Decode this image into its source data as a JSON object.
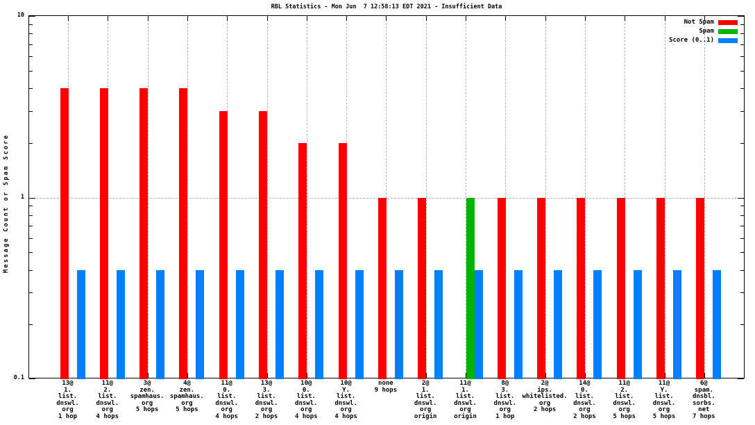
{
  "chart_data": {
    "type": "bar",
    "title": "RBL Statistics - Mon Jun  7 12:58:13 EDT 2021 - Insufficient Data",
    "ylabel": "Message Count or Spam Score",
    "yscale": "log",
    "ylim": [
      0.1,
      10
    ],
    "yticks": [
      {
        "label": "0.1",
        "value": 0.1
      },
      {
        "label": "1",
        "value": 1
      },
      {
        "label": "10",
        "value": 10
      }
    ],
    "grid": {
      "horizontal_at": [
        1
      ],
      "vertical": "every-category"
    },
    "legend_position": "top-right",
    "legend": [
      {
        "label": "Not Spam",
        "series": "not_spam",
        "color": "#ff0000"
      },
      {
        "label": "Spam",
        "series": "spam",
        "color": "#00b400"
      },
      {
        "label": "Score (0..1)",
        "series": "score",
        "color": "#0080ff"
      }
    ],
    "categories": [
      {
        "label_lines": [
          "13@",
          "1.",
          "list.",
          "dnswl.",
          "org",
          "1 hop"
        ],
        "not_spam": 4,
        "spam": 0,
        "score": 0.4
      },
      {
        "label_lines": [
          "11@",
          "2.",
          "list.",
          "dnswl.",
          "org",
          "4 hops"
        ],
        "not_spam": 4,
        "spam": 0,
        "score": 0.4
      },
      {
        "label_lines": [
          "3@",
          "zen.",
          "spamhaus.",
          "org",
          "5 hops"
        ],
        "not_spam": 4,
        "spam": 0,
        "score": 0.4
      },
      {
        "label_lines": [
          "4@",
          "zen.",
          "spamhaus.",
          "org",
          "5 hops"
        ],
        "not_spam": 4,
        "spam": 0,
        "score": 0.4
      },
      {
        "label_lines": [
          "11@",
          "0.",
          "list.",
          "dnswl.",
          "org",
          "4 hops"
        ],
        "not_spam": 3,
        "spam": 0,
        "score": 0.4
      },
      {
        "label_lines": [
          "13@",
          "3.",
          "list.",
          "dnswl.",
          "org",
          "2 hops"
        ],
        "not_spam": 3,
        "spam": 0,
        "score": 0.4
      },
      {
        "label_lines": [
          "10@",
          "0.",
          "list.",
          "dnswl.",
          "org",
          "4 hops"
        ],
        "not_spam": 2,
        "spam": 0,
        "score": 0.4
      },
      {
        "label_lines": [
          "10@",
          "Y.",
          "list.",
          "dnswl.",
          "org",
          "4 hops"
        ],
        "not_spam": 2,
        "spam": 0,
        "score": 0.4
      },
      {
        "label_lines": [
          "none",
          "9 hops"
        ],
        "not_spam": 1,
        "spam": 0,
        "score": 0.4
      },
      {
        "label_lines": [
          "2@",
          "1.",
          "list.",
          "dnswl.",
          "org",
          "origin"
        ],
        "not_spam": 1,
        "spam": 0,
        "score": 0.4
      },
      {
        "label_lines": [
          "11@",
          "1.",
          "list.",
          "dnswl.",
          "org",
          "origin"
        ],
        "not_spam": 0,
        "spam": 1,
        "score": 0.4
      },
      {
        "label_lines": [
          "8@",
          "3.",
          "list.",
          "dnswl.",
          "org",
          "1 hop"
        ],
        "not_spam": 1,
        "spam": 0,
        "score": 0.4
      },
      {
        "label_lines": [
          "2@",
          "ips.",
          "whitelisted.",
          "org",
          "2 hops"
        ],
        "not_spam": 1,
        "spam": 0,
        "score": 0.4
      },
      {
        "label_lines": [
          "14@",
          "0.",
          "list.",
          "dnswl.",
          "org",
          "2 hops"
        ],
        "not_spam": 1,
        "spam": 0,
        "score": 0.4
      },
      {
        "label_lines": [
          "11@",
          "2.",
          "list.",
          "dnswl.",
          "org",
          "5 hops"
        ],
        "not_spam": 1,
        "spam": 0,
        "score": 0.4
      },
      {
        "label_lines": [
          "11@",
          "Y.",
          "list.",
          "dnswl.",
          "org",
          "5 hops"
        ],
        "not_spam": 1,
        "spam": 0,
        "score": 0.4
      },
      {
        "label_lines": [
          "6@",
          "spam.",
          "dnsbl.",
          "sorbs.",
          "net",
          "7 hops"
        ],
        "not_spam": 1,
        "spam": 0,
        "score": 0.4
      }
    ]
  }
}
